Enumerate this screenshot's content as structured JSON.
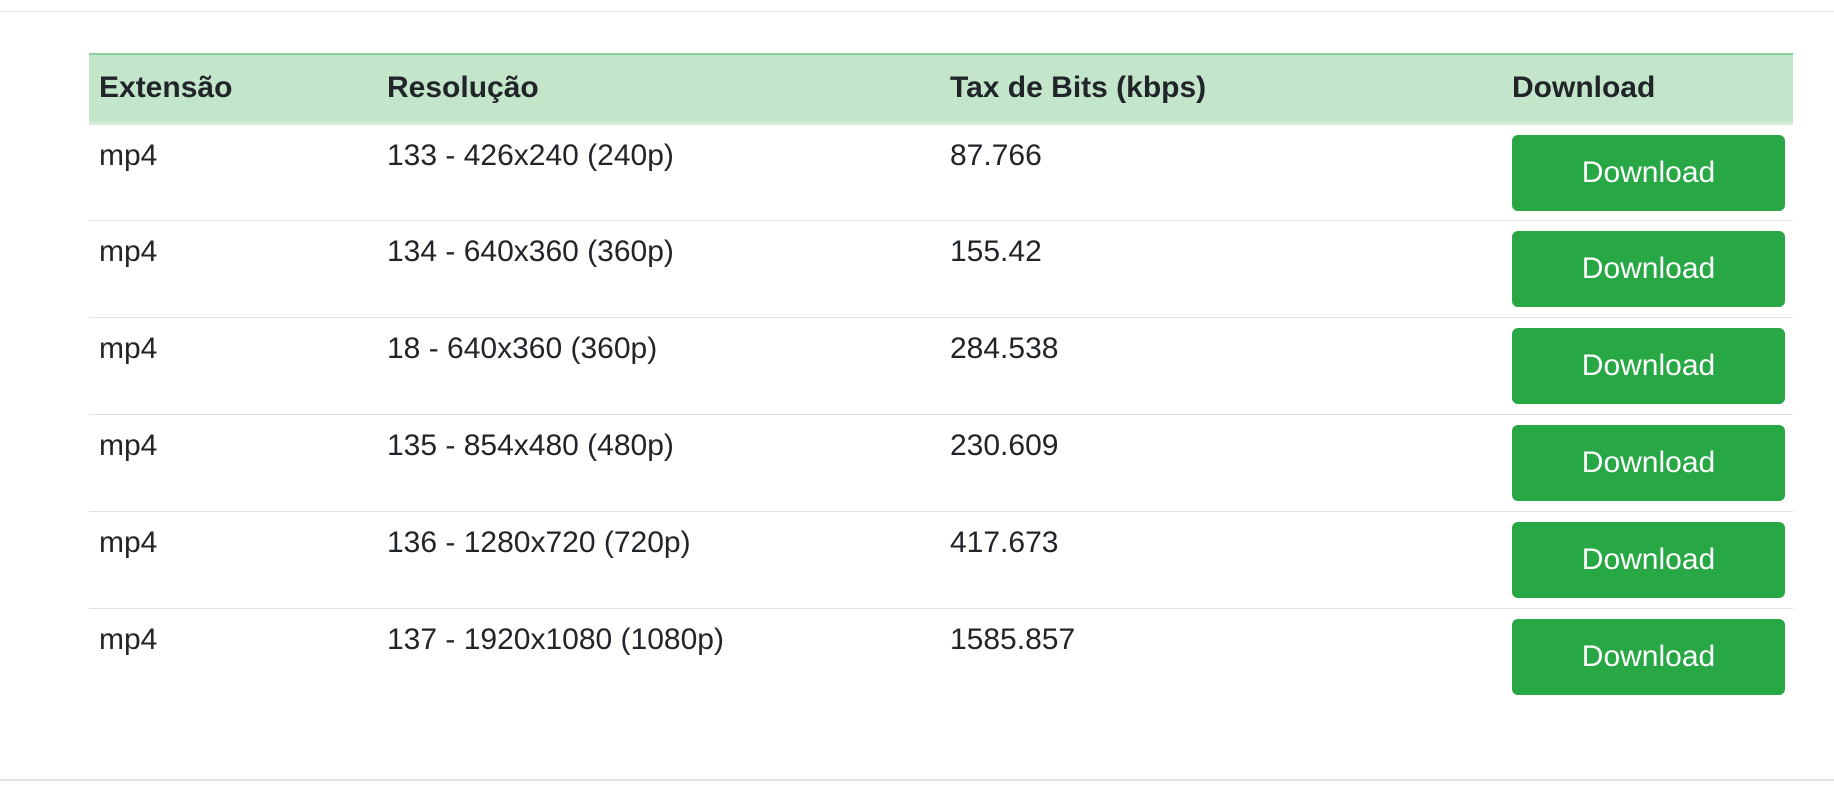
{
  "table": {
    "headers": {
      "extension": "Extensão",
      "resolution": "Resolução",
      "bitrate": "Tax de Bits (kbps)",
      "download": "Download"
    },
    "rows": [
      {
        "extension": "mp4",
        "resolution": "133 - 426x240 (240p)",
        "bitrate": "87.766",
        "button": "Download"
      },
      {
        "extension": "mp4",
        "resolution": "134 - 640x360 (360p)",
        "bitrate": "155.42",
        "button": "Download"
      },
      {
        "extension": "mp4",
        "resolution": "18 - 640x360 (360p)",
        "bitrate": "284.538",
        "button": "Download"
      },
      {
        "extension": "mp4",
        "resolution": "135 - 854x480 (480p)",
        "bitrate": "230.609",
        "button": "Download"
      },
      {
        "extension": "mp4",
        "resolution": "136 - 1280x720 (720p)",
        "bitrate": "417.673",
        "button": "Download"
      },
      {
        "extension": "mp4",
        "resolution": "137 - 1920x1080 (1080p)",
        "bitrate": "1585.857",
        "button": "Download"
      }
    ]
  },
  "colors": {
    "header_background": "#c3e6cb",
    "button_background": "#28a745",
    "button_text": "#ffffff",
    "text": "#212529",
    "divider": "#dee2e6"
  }
}
